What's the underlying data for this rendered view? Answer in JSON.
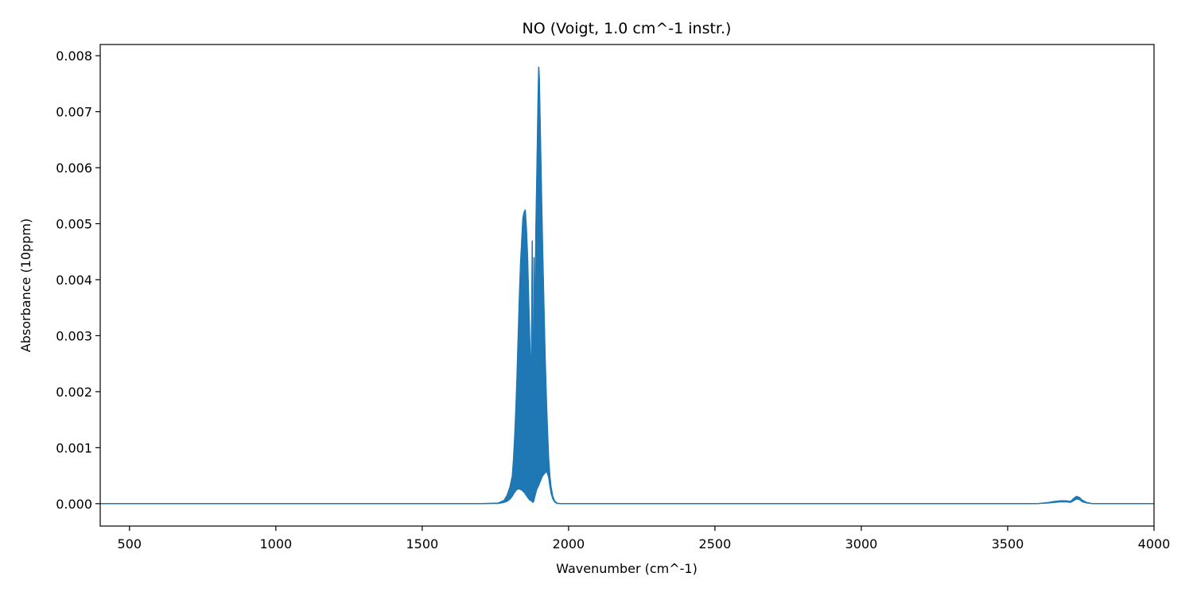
{
  "chart_data": {
    "type": "line",
    "title": "NO (Voigt, 1.0 cm^-1 instr.)",
    "xlabel": "Wavenumber (cm^-1)",
    "ylabel": "Absorbance (10ppm)",
    "xlim": [
      400,
      4000
    ],
    "ylim": [
      -0.0004,
      0.0082
    ],
    "x_ticks": [
      500,
      1000,
      1500,
      2000,
      2500,
      3000,
      3500,
      4000
    ],
    "y_ticks": [
      0.0,
      0.001,
      0.002,
      0.003,
      0.004,
      0.005,
      0.006,
      0.007,
      0.008
    ],
    "x_tick_labels": [
      "500",
      "1000",
      "1500",
      "2000",
      "2500",
      "3000",
      "3500",
      "4000"
    ],
    "y_tick_labels": [
      "0.000",
      "0.001",
      "0.002",
      "0.003",
      "0.004",
      "0.005",
      "0.006",
      "0.007",
      "0.008"
    ],
    "grid": false,
    "line_color": "#1f77b4",
    "series": [
      {
        "x": [
          400,
          1700,
          1760,
          1780,
          1790,
          1800,
          1808,
          1812,
          1816,
          1820,
          1824,
          1828,
          1832,
          1836,
          1840,
          1844,
          1848,
          1852,
          1856,
          1860,
          1864,
          1868,
          1872,
          1876,
          1878,
          1880,
          1882,
          1884,
          1888,
          1892,
          1896,
          1898,
          1900,
          1904,
          1908,
          1912,
          1916,
          1920,
          1924,
          1928,
          1932,
          1936,
          1940,
          1946,
          1952,
          1960,
          1975,
          2000,
          2100,
          3600,
          3640,
          3660,
          3680,
          3700,
          3715,
          3725,
          3735,
          3745,
          3755,
          3770,
          3790,
          4000
        ],
        "y_upper": [
          0,
          0,
          1e-05,
          6e-05,
          0.00015,
          0.0003,
          0.0005,
          0.0008,
          0.0012,
          0.0017,
          0.0023,
          0.003,
          0.0037,
          0.0043,
          0.0047,
          0.0051,
          0.0052,
          0.00525,
          0.0049,
          0.0044,
          0.0036,
          0.0028,
          0.002,
          0.0047,
          0.0012,
          0.0014,
          0.0044,
          0.0024,
          0.0048,
          0.006,
          0.0073,
          0.0078,
          0.0076,
          0.0065,
          0.0054,
          0.0044,
          0.0035,
          0.0026,
          0.0019,
          0.0013,
          0.0008,
          0.0005,
          0.0003,
          0.00013,
          5e-05,
          1e-05,
          0,
          0,
          0,
          0,
          2e-05,
          4e-05,
          5e-05,
          5e-05,
          4e-05,
          9e-05,
          0.00013,
          0.00011,
          6e-05,
          2e-05,
          0,
          0
        ],
        "y_lower": [
          0,
          0,
          0,
          2e-05,
          4e-05,
          8e-05,
          0.00013,
          0.00017,
          0.0002,
          0.00023,
          0.00025,
          0.00026,
          0.00026,
          0.00025,
          0.00024,
          0.00022,
          0.0002,
          0.00017,
          0.00014,
          0.00011,
          8e-05,
          6e-05,
          5e-05,
          3e-05,
          2e-05,
          3e-05,
          5e-05,
          0.0001,
          0.00018,
          0.00026,
          0.0003,
          0.00032,
          0.00035,
          0.0004,
          0.00045,
          0.0005,
          0.00052,
          0.00055,
          0.00057,
          0.00053,
          0.00045,
          0.0003,
          0.00018,
          8e-05,
          3e-05,
          0,
          0,
          0,
          0,
          0,
          1e-05,
          2e-05,
          3e-05,
          3e-05,
          2e-05,
          5e-05,
          8e-05,
          7e-05,
          3e-05,
          1e-05,
          0,
          0
        ]
      }
    ]
  }
}
